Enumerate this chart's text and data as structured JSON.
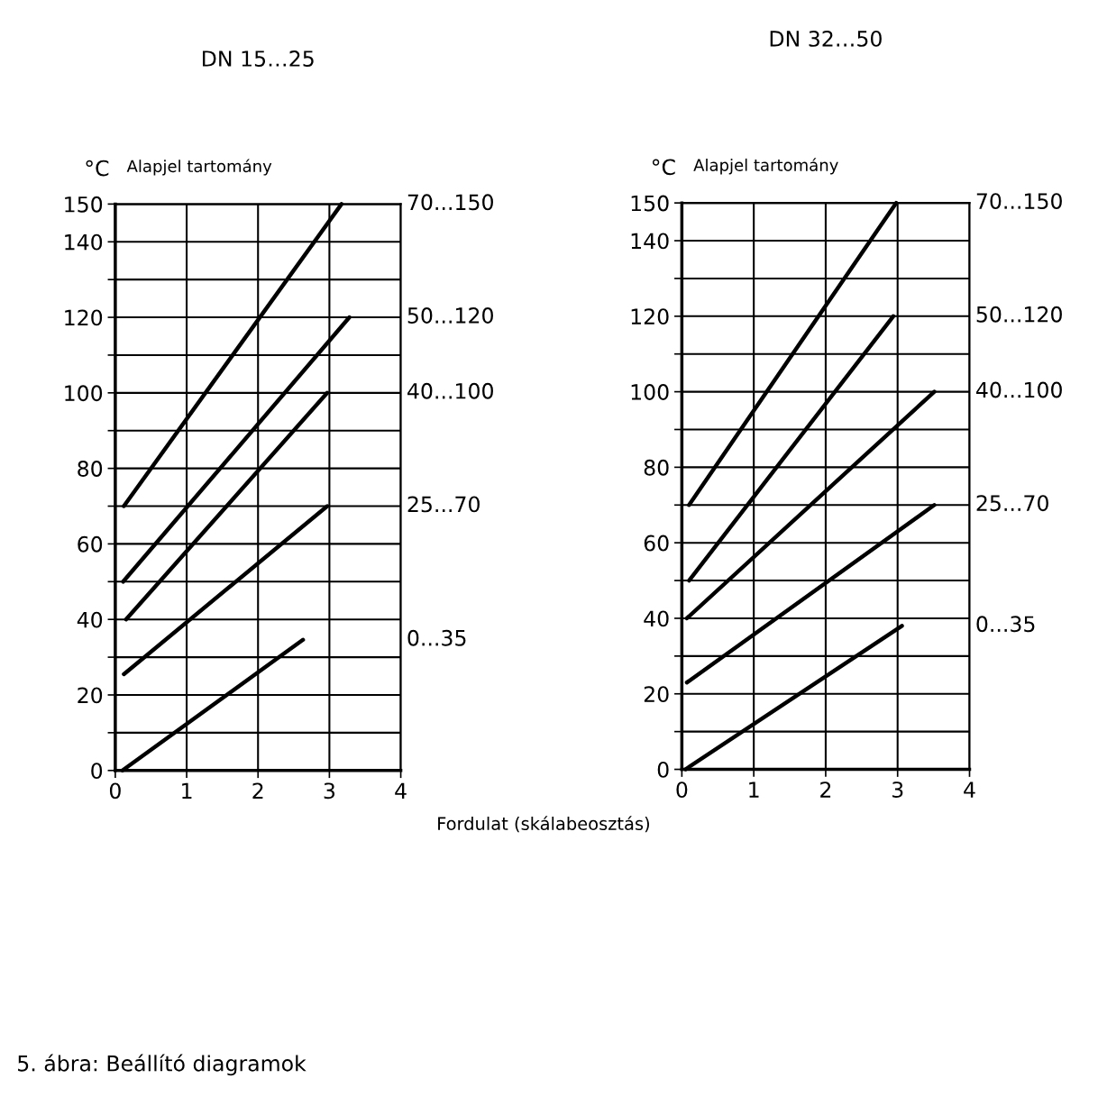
{
  "chart_data": [
    {
      "type": "line",
      "title": "DN 15…25",
      "ylabel": "°C",
      "xlabel": "Fordulat (skálabeosztás)",
      "annotations": [
        "Alapjel tartomány",
        "5. ábra: Beállító diagramok"
      ],
      "xlim": [
        0,
        4
      ],
      "ylim": [
        0,
        150
      ],
      "xticks": [
        0,
        1,
        2,
        3,
        4
      ],
      "yticks": [
        0,
        {
          "value": 10,
          "label": null
        },
        20,
        {
          "value": 30,
          "label": null
        },
        40,
        {
          "value": 50,
          "label": null
        },
        60,
        {
          "value": 70,
          "label": null
        },
        80,
        {
          "value": 90,
          "label": null
        },
        100,
        {
          "value": 110,
          "label": null
        },
        120,
        {
          "value": 130,
          "label": null
        },
        140,
        150
      ],
      "grid": true,
      "legend": false,
      "line_style": "solid",
      "marker": "none",
      "series": [
        {
          "name": "70...150",
          "color": "#000000",
          "x": [
            0.12,
            3.17
          ],
          "values": [
            70,
            150
          ]
        },
        {
          "name": "50...120",
          "color": "#000000",
          "x": [
            0.11,
            3.28
          ],
          "values": [
            50,
            120
          ]
        },
        {
          "name": "40...100",
          "color": "#000000",
          "x": [
            0.15,
            2.97
          ],
          "values": [
            40,
            100
          ]
        },
        {
          "name": "25...70",
          "color": "#000000",
          "x": [
            0.12,
            2.97
          ],
          "values": [
            25.5,
            70
          ]
        },
        {
          "name": "0...35",
          "color": "#000000",
          "x": [
            0.1,
            2.63
          ],
          "values": [
            0,
            34.6
          ]
        }
      ]
    },
    {
      "type": "line",
      "title": "DN 32…50",
      "ylabel": "°C",
      "annotations": [
        "Alapjel tartomány"
      ],
      "xlim": [
        0,
        4
      ],
      "ylim": [
        0,
        150
      ],
      "xticks": [
        0,
        1,
        2,
        3,
        4
      ],
      "yticks": [
        0,
        {
          "value": 10,
          "label": null
        },
        20,
        {
          "value": 30,
          "label": null
        },
        40,
        {
          "value": 50,
          "label": null
        },
        60,
        {
          "value": 70,
          "label": null
        },
        80,
        {
          "value": 90,
          "label": null
        },
        100,
        {
          "value": 110,
          "label": null
        },
        120,
        {
          "value": 130,
          "label": null
        },
        140,
        150
      ],
      "grid": true,
      "legend": false,
      "line_style": "solid",
      "marker": "none",
      "series": [
        {
          "name": "70...150",
          "color": "#000000",
          "x": [
            0.1,
            2.98
          ],
          "values": [
            70,
            150
          ]
        },
        {
          "name": "50...120",
          "color": "#000000",
          "x": [
            0.1,
            2.94
          ],
          "values": [
            50,
            120
          ]
        },
        {
          "name": "40...100",
          "color": "#000000",
          "x": [
            0.07,
            3.51
          ],
          "values": [
            40,
            100
          ]
        },
        {
          "name": "25...70",
          "color": "#000000",
          "x": [
            0.07,
            3.51
          ],
          "values": [
            23,
            70
          ]
        },
        {
          "name": "0...35",
          "color": "#000000",
          "x": [
            0.05,
            3.06
          ],
          "values": [
            0,
            38
          ]
        }
      ]
    }
  ]
}
